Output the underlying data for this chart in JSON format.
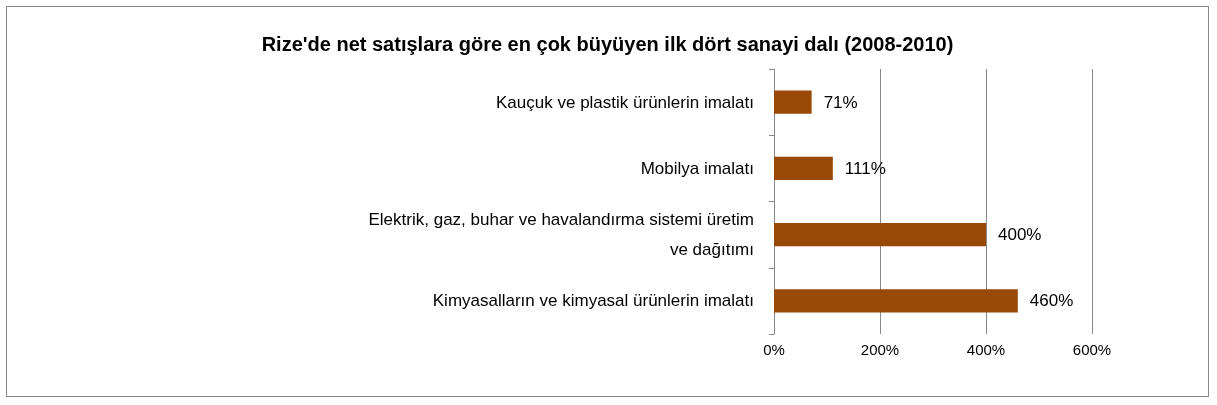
{
  "chart_data": {
    "type": "bar",
    "orientation": "horizontal",
    "title": "Rize'de net satışlara göre en çok büyüyen ilk dört sanayi dalı (2008-2010)",
    "categories": [
      "Kauçuk ve plastik ürünlerin imalatı",
      "Mobilya imalatı",
      "Elektrik, gaz, buhar ve havalandırma sistemi üretim ve dağıtımı",
      "Kimyasalların ve kimyasal ürünlerin imalatı"
    ],
    "values": [
      71,
      111,
      400,
      460
    ],
    "value_labels": [
      "71%",
      "111%",
      "400%",
      "460%"
    ],
    "color": "#984807",
    "xlim": [
      0,
      600
    ],
    "xticks": [
      {
        "value": 0,
        "label": "0%"
      },
      {
        "value": 200,
        "label": "200%"
      },
      {
        "value": 400,
        "label": "400%"
      },
      {
        "value": 600,
        "label": "600%"
      }
    ],
    "grid": "x"
  }
}
